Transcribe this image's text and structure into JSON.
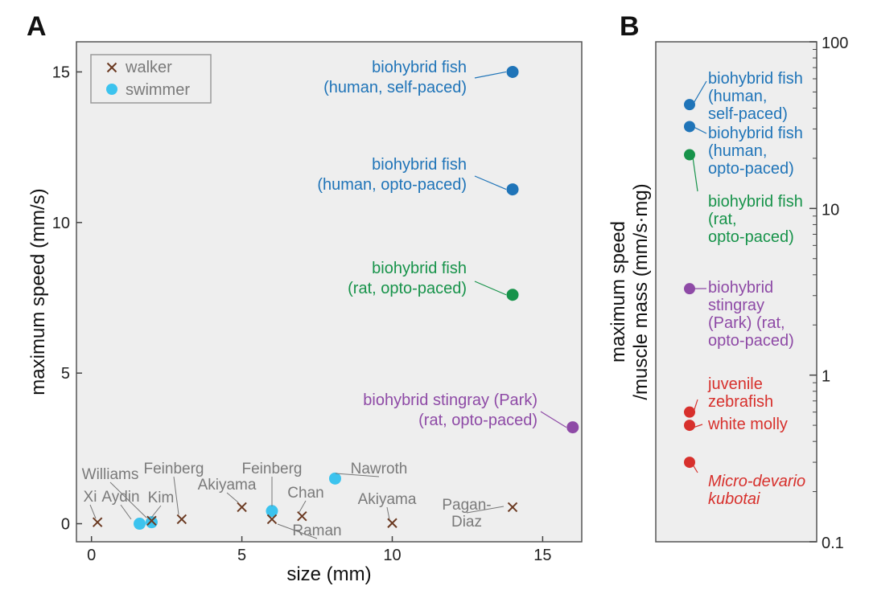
{
  "colors": {
    "walker": "#6b3a22",
    "swimmer": "#3cc3ee",
    "blue": "#1f74b8",
    "green": "#17934a",
    "purple": "#8e4aa6",
    "red": "#d7302c",
    "gray_label": "#7a7a7a",
    "plot_bg": "#eeeeee"
  },
  "chart_data": [
    {
      "panel": "A",
      "type": "scatter",
      "xlabel": "size (mm)",
      "ylabel": "maximum speed (mm/s)",
      "xlim": [
        -0.5,
        16.3
      ],
      "ylim": [
        -0.6,
        16.0
      ],
      "xticks": [
        0,
        5,
        10,
        15
      ],
      "yticks": [
        0,
        5,
        10,
        15
      ],
      "legend": {
        "position": "top-left",
        "entries": [
          {
            "label": "walker",
            "marker": "x",
            "color_key": "walker"
          },
          {
            "label": "swimmer",
            "marker": "circle",
            "color_key": "swimmer"
          }
        ]
      },
      "walkers": [
        {
          "label": "Xi",
          "x": 0.2,
          "y": 0.05
        },
        {
          "label": "Kim",
          "x": 2.0,
          "y": 0.1
        },
        {
          "label": "Feinberg",
          "x": 3.0,
          "y": 0.15
        },
        {
          "label": "Akiyama",
          "x": 5.0,
          "y": 0.55
        },
        {
          "label": "Raman",
          "x": 6.0,
          "y": 0.15
        },
        {
          "label": "Chan",
          "x": 7.0,
          "y": 0.25
        },
        {
          "label": "Akiyama",
          "x": 10.0,
          "y": 0.02
        },
        {
          "label": "Pagan-\nDiaz",
          "x": 14.0,
          "y": 0.55
        }
      ],
      "swimmers": [
        {
          "label": "Aydin",
          "x": 1.6,
          "y": 0.0
        },
        {
          "label": "Williams",
          "x": 2.0,
          "y": 0.05
        },
        {
          "label": "Feinberg",
          "x": 6.0,
          "y": 0.42
        },
        {
          "label": "Nawroth",
          "x": 8.1,
          "y": 1.5
        }
      ],
      "highlights": [
        {
          "label": "biohybrid fish\n(human, self-paced)",
          "x": 14.0,
          "y": 15.0,
          "color_key": "blue"
        },
        {
          "label": "biohybrid fish\n(human, opto-paced)",
          "x": 14.0,
          "y": 11.1,
          "color_key": "blue"
        },
        {
          "label": "biohybrid fish\n(rat, opto-paced)",
          "x": 14.0,
          "y": 7.6,
          "color_key": "green"
        },
        {
          "label": "biohybrid stingray (Park)\n(rat, opto-paced)",
          "x": 16.0,
          "y": 3.2,
          "color_key": "purple"
        }
      ]
    },
    {
      "panel": "B",
      "type": "scatter",
      "ylabel": "maximum speed\n/muscle mass (mm/s·mg)",
      "yscale": "log",
      "ylim": [
        0.1,
        100
      ],
      "yticks": [
        "0.1",
        "1",
        "10",
        "100"
      ],
      "points": [
        {
          "label": "biohybrid fish\n(human,\nself-paced)",
          "y": 42,
          "color_key": "blue"
        },
        {
          "label": "biohybrid fish\n(human,\nopto-paced)",
          "y": 31,
          "color_key": "blue"
        },
        {
          "label": "biohybrid fish\n(rat,\nopto-paced)",
          "y": 21,
          "color_key": "green"
        },
        {
          "label": "biohybrid\nstingray\n(Park) (rat,\nopto-paced)",
          "y": 3.3,
          "color_key": "purple"
        },
        {
          "label": "juvenile\nzebrafish",
          "y": 0.6,
          "color_key": "red"
        },
        {
          "label": "white molly",
          "y": 0.5,
          "color_key": "red"
        },
        {
          "label": "Micro-devario\nkubotai",
          "y": 0.3,
          "color_key": "red",
          "italic": true
        }
      ]
    }
  ]
}
